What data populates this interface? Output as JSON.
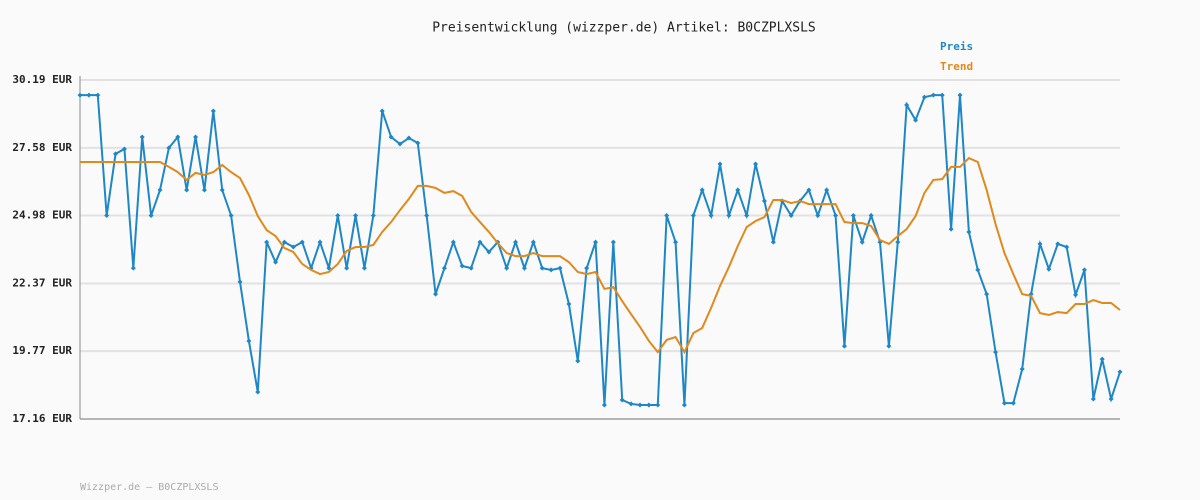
{
  "chart_data": {
    "type": "line",
    "title": "Preisentwicklung (wizzper.de) Artikel: B0CZPLXSLS",
    "footer": "Wizzper.de – B0CZPLXSLS",
    "ylim": [
      17.16,
      30.19
    ],
    "yticks": [
      {
        "value": 17.16,
        "label": "17.16 EUR"
      },
      {
        "value": 19.77,
        "label": "19.77 EUR"
      },
      {
        "value": 22.37,
        "label": "22.37 EUR"
      },
      {
        "value": 24.98,
        "label": "24.98 EUR"
      },
      {
        "value": 27.58,
        "label": "27.58 EUR"
      },
      {
        "value": 30.19,
        "label": "30.19 EUR"
      }
    ],
    "grid": true,
    "legend": "top-right",
    "series": [
      {
        "name": "Preis",
        "color": "#1f87c5",
        "markers": true,
        "values": [
          29.61,
          29.61,
          29.61,
          24.98,
          27.35,
          27.54,
          22.96,
          28.0,
          24.98,
          25.96,
          27.58,
          28.0,
          25.96,
          28.0,
          25.96,
          29.0,
          25.96,
          24.98,
          22.43,
          20.16,
          18.2,
          23.96,
          23.19,
          23.96,
          23.77,
          23.96,
          22.96,
          23.96,
          22.96,
          24.98,
          22.96,
          24.98,
          22.96,
          24.98,
          29.0,
          28.0,
          27.73,
          27.96,
          27.77,
          24.98,
          21.96,
          22.96,
          23.96,
          23.04,
          22.96,
          23.96,
          23.58,
          23.96,
          22.96,
          23.96,
          22.96,
          23.96,
          22.96,
          22.89,
          22.96,
          21.58,
          19.39,
          22.96,
          23.96,
          17.7,
          23.96,
          17.89,
          17.74,
          17.7,
          17.7,
          17.7,
          24.98,
          23.96,
          17.7,
          24.98,
          25.96,
          24.98,
          26.96,
          24.98,
          25.96,
          24.98,
          26.96,
          25.54,
          23.96,
          25.54,
          24.98,
          25.54,
          25.96,
          24.98,
          25.96,
          24.98,
          19.96,
          24.98,
          23.96,
          24.98,
          23.96,
          19.96,
          23.96,
          29.23,
          28.65,
          29.53,
          29.61,
          29.61,
          24.46,
          29.61,
          24.35,
          22.89,
          21.96,
          19.73,
          17.77,
          17.77,
          19.08,
          21.96,
          23.89,
          22.92,
          23.89,
          23.77,
          21.93,
          22.89,
          17.93,
          19.46,
          17.93,
          18.97
        ]
      },
      {
        "name": "Trend",
        "color": "#e0891c",
        "markers": false,
        "values": [
          27.04,
          27.04,
          27.04,
          27.04,
          27.04,
          27.04,
          27.04,
          27.04,
          27.04,
          27.04,
          26.85,
          26.65,
          26.35,
          26.62,
          26.54,
          26.65,
          26.92,
          26.65,
          26.42,
          25.77,
          24.96,
          24.42,
          24.19,
          23.73,
          23.58,
          23.12,
          22.89,
          22.73,
          22.81,
          23.12,
          23.62,
          23.77,
          23.77,
          23.85,
          24.35,
          24.73,
          25.19,
          25.62,
          26.12,
          26.12,
          26.04,
          25.85,
          25.92,
          25.73,
          25.12,
          24.73,
          24.35,
          23.92,
          23.54,
          23.42,
          23.42,
          23.54,
          23.42,
          23.42,
          23.42,
          23.19,
          22.81,
          22.73,
          22.81,
          22.16,
          22.23,
          21.69,
          21.19,
          20.7,
          20.16,
          19.73,
          20.2,
          20.31,
          19.73,
          20.46,
          20.66,
          21.43,
          22.27,
          23.0,
          23.81,
          24.54,
          24.77,
          24.92,
          25.58,
          25.58,
          25.46,
          25.54,
          25.42,
          25.42,
          25.42,
          25.42,
          24.73,
          24.69,
          24.69,
          24.58,
          24.04,
          23.89,
          24.19,
          24.46,
          24.96,
          25.85,
          26.35,
          26.38,
          26.85,
          26.85,
          27.19,
          27.04,
          25.96,
          24.65,
          23.54,
          22.73,
          21.96,
          21.89,
          21.23,
          21.16,
          21.27,
          21.23,
          21.58,
          21.58,
          21.73,
          21.62,
          21.62,
          21.35
        ]
      }
    ]
  }
}
